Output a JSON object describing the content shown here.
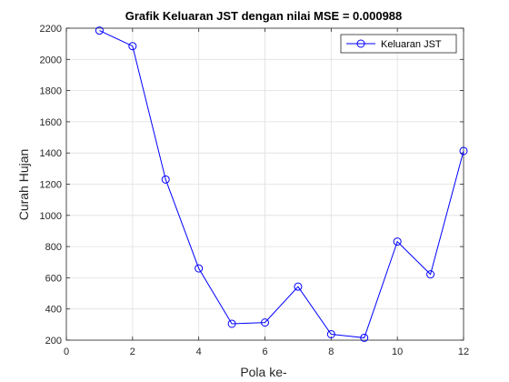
{
  "chart_data": {
    "type": "line",
    "title": "Grafik Keluaran JST dengan nilai MSE = 0.000988",
    "xlabel": "Pola ke-",
    "ylabel": "Curah Hujan",
    "xlim": [
      0,
      12
    ],
    "ylim": [
      200,
      2200
    ],
    "xticks": [
      0,
      2,
      4,
      6,
      8,
      10,
      12
    ],
    "yticks": [
      200,
      400,
      600,
      800,
      1000,
      1200,
      1400,
      1600,
      1800,
      2000,
      2200
    ],
    "grid": true,
    "legend_position": "top-right",
    "series": [
      {
        "name": "Keluaran JST",
        "color": "#0000ff",
        "marker": "circle",
        "x": [
          1,
          2,
          3,
          4,
          5,
          6,
          7,
          8,
          9,
          10,
          11,
          12
        ],
        "y": [
          2185,
          2085,
          1230,
          660,
          305,
          313,
          543,
          238,
          215,
          832,
          622,
          1413
        ]
      }
    ]
  }
}
